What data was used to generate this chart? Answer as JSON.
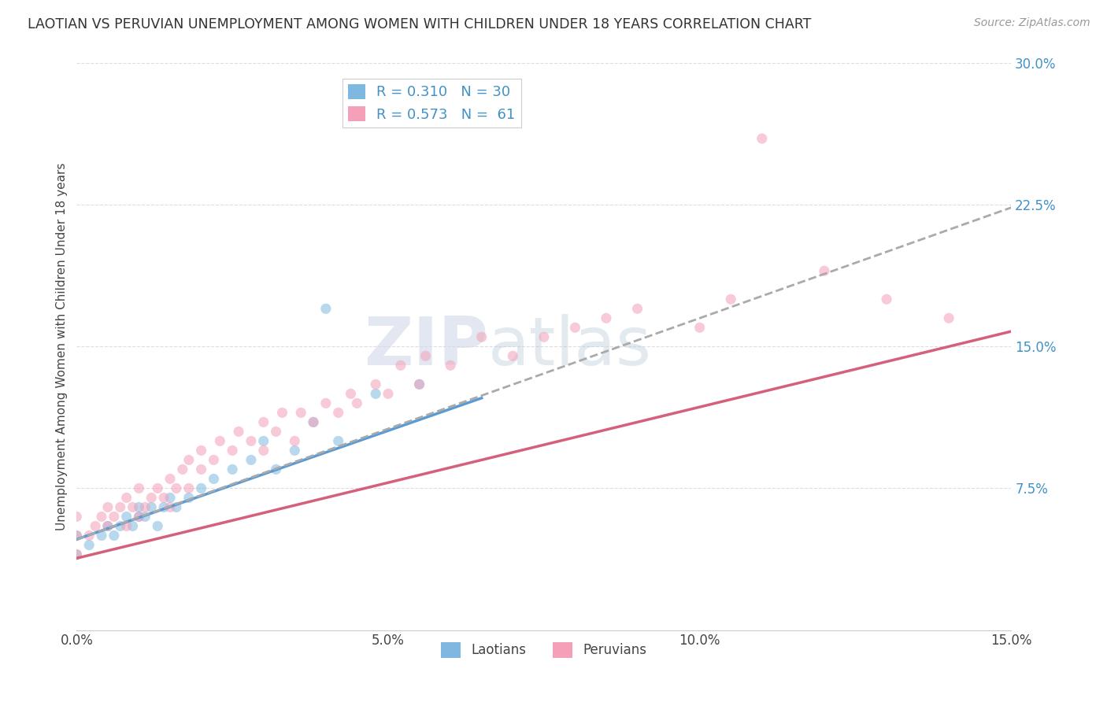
{
  "title": "LAOTIAN VS PERUVIAN UNEMPLOYMENT AMONG WOMEN WITH CHILDREN UNDER 18 YEARS CORRELATION CHART",
  "source": "Source: ZipAtlas.com",
  "ylabel": "Unemployment Among Women with Children Under 18 years",
  "xlim": [
    0.0,
    0.15
  ],
  "ylim": [
    0.0,
    0.3
  ],
  "yticks_right": [
    0.075,
    0.15,
    0.225,
    0.3
  ],
  "yticklabels_right": [
    "7.5%",
    "15.0%",
    "22.5%",
    "30.0%"
  ],
  "xtick_vals": [
    0.0,
    0.05,
    0.1,
    0.15
  ],
  "xticklabels": [
    "0.0%",
    "5.0%",
    "10.0%",
    "15.0%"
  ],
  "blue_color": "#7eb8e0",
  "pink_color": "#f4a0b8",
  "blue_line_color": "#5b9bd5",
  "pink_line_color": "#d4607a",
  "dashed_line_color": "#aaaaaa",
  "legend_R_blue": "0.310",
  "legend_N_blue": "30",
  "legend_R_pink": "0.573",
  "legend_N_pink": "61",
  "legend_label_blue": "Laotians",
  "legend_label_pink": "Peruvians",
  "watermark_zip": "ZIP",
  "watermark_atlas": "atlas",
  "blue_line_x": [
    0.0,
    0.065
  ],
  "blue_line_y_start": 0.048,
  "blue_line_slope": 1.15,
  "pink_line_x": [
    0.0,
    0.15
  ],
  "pink_line_y_start": 0.038,
  "pink_line_slope": 0.8,
  "dashed_line_x": [
    0.0,
    0.15
  ],
  "dashed_line_y_start": 0.048,
  "dashed_line_slope": 1.17,
  "blue_points_x": [
    0.0,
    0.0,
    0.002,
    0.004,
    0.005,
    0.006,
    0.007,
    0.008,
    0.009,
    0.01,
    0.01,
    0.011,
    0.012,
    0.013,
    0.014,
    0.015,
    0.016,
    0.018,
    0.02,
    0.022,
    0.025,
    0.028,
    0.03,
    0.032,
    0.035,
    0.038,
    0.04,
    0.042,
    0.048,
    0.055
  ],
  "blue_points_y": [
    0.04,
    0.05,
    0.045,
    0.05,
    0.055,
    0.05,
    0.055,
    0.06,
    0.055,
    0.06,
    0.065,
    0.06,
    0.065,
    0.055,
    0.065,
    0.07,
    0.065,
    0.07,
    0.075,
    0.08,
    0.085,
    0.09,
    0.1,
    0.085,
    0.095,
    0.11,
    0.17,
    0.1,
    0.125,
    0.13
  ],
  "pink_points_x": [
    0.0,
    0.0,
    0.0,
    0.002,
    0.003,
    0.004,
    0.005,
    0.005,
    0.006,
    0.007,
    0.008,
    0.008,
    0.009,
    0.01,
    0.01,
    0.011,
    0.012,
    0.013,
    0.014,
    0.015,
    0.015,
    0.016,
    0.017,
    0.018,
    0.018,
    0.02,
    0.02,
    0.022,
    0.023,
    0.025,
    0.026,
    0.028,
    0.03,
    0.03,
    0.032,
    0.033,
    0.035,
    0.036,
    0.038,
    0.04,
    0.042,
    0.044,
    0.045,
    0.048,
    0.05,
    0.052,
    0.055,
    0.056,
    0.06,
    0.065,
    0.07,
    0.075,
    0.08,
    0.085,
    0.09,
    0.1,
    0.105,
    0.11,
    0.12,
    0.13,
    0.14
  ],
  "pink_points_y": [
    0.04,
    0.05,
    0.06,
    0.05,
    0.055,
    0.06,
    0.055,
    0.065,
    0.06,
    0.065,
    0.055,
    0.07,
    0.065,
    0.06,
    0.075,
    0.065,
    0.07,
    0.075,
    0.07,
    0.065,
    0.08,
    0.075,
    0.085,
    0.075,
    0.09,
    0.085,
    0.095,
    0.09,
    0.1,
    0.095,
    0.105,
    0.1,
    0.095,
    0.11,
    0.105,
    0.115,
    0.1,
    0.115,
    0.11,
    0.12,
    0.115,
    0.125,
    0.12,
    0.13,
    0.125,
    0.14,
    0.13,
    0.145,
    0.14,
    0.155,
    0.145,
    0.155,
    0.16,
    0.165,
    0.17,
    0.16,
    0.175,
    0.26,
    0.19,
    0.175,
    0.165
  ]
}
